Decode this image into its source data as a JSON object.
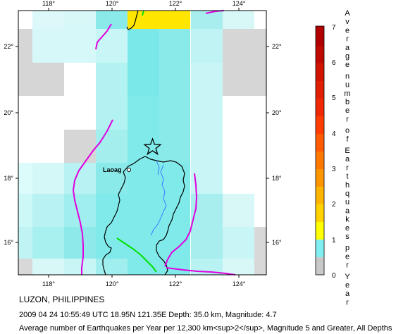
{
  "map": {
    "lon_ticks": [
      "118°",
      "120°",
      "122°",
      "124°"
    ],
    "lat_ticks": [
      "16°",
      "18°",
      "20°",
      "22°"
    ],
    "city_label": "Laoag"
  },
  "colorbar": {
    "title": "Average number of Earthquakes per Year",
    "ticks": [
      "0",
      "1",
      "2",
      "3",
      "4",
      "5",
      "6",
      "7"
    ],
    "colors": {
      "0": "#c8c8c8",
      "0.5": "#c8f8f8",
      "1": "#7fefef",
      "1.5": "#ffff00",
      "3": "#ffa500",
      "5": "#ff4000",
      "7": "#b00000"
    }
  },
  "caption": {
    "region": "LUZON, PHILIPPINES",
    "event": "2009 04 24 10:55:49 UTC 18.95N 121.35E Depth: 35.0 km, Magnitude: 4.7",
    "description": "Average number of Earthquakes per Year per 12,300 km<sup>2</sup>, Magnitude 5 and Greater, All Depths"
  }
}
